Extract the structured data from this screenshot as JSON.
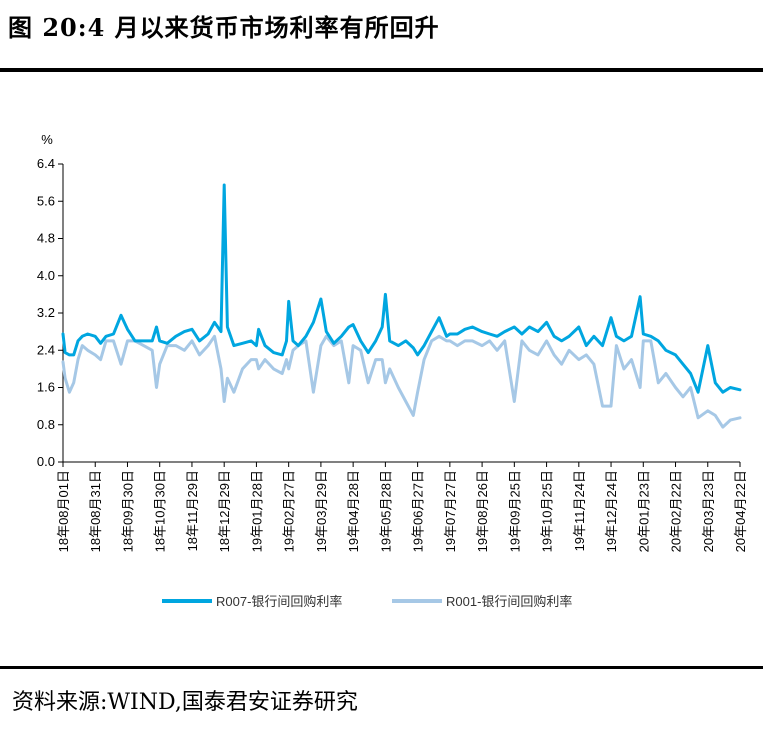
{
  "figure": {
    "title": "图 20:4 月以来货币市场利率有所回升",
    "source": "资料来源:WIND,国泰君安证券研究"
  },
  "chart_data": {
    "type": "line",
    "ylabel": "%",
    "ylim": [
      0.0,
      6.4
    ],
    "yticks": [
      "0.0",
      "0.8",
      "1.6",
      "2.4",
      "3.2",
      "4.0",
      "4.8",
      "5.6",
      "6.4"
    ],
    "xlim": [
      "18年08月01日",
      "20年04月22日"
    ],
    "xticks": [
      "18年08月01日",
      "18年08月31日",
      "18年09月30日",
      "18年10月30日",
      "18年11月29日",
      "18年12月29日",
      "19年01月28日",
      "19年02月27日",
      "19年03月29日",
      "19年04月28日",
      "19年05月28日",
      "19年06月27日",
      "19年07月27日",
      "19年08月26日",
      "19年09月25日",
      "19年10月25日",
      "19年11月24日",
      "19年12月24日",
      "20年01月23日",
      "20年02月22日",
      "20年03月23日",
      "20年04月22日"
    ],
    "legend_position": "bottom",
    "grid": false,
    "series": [
      {
        "name": "R007-银行间回购利率",
        "color": "#00a6e0",
        "points": [
          [
            "18年08月01日",
            2.75
          ],
          [
            "18年08月03日",
            2.35
          ],
          [
            "18年08月07日",
            2.3
          ],
          [
            "18年08月11日",
            2.3
          ],
          [
            "18年08月15日",
            2.6
          ],
          [
            "18年08月19日",
            2.7
          ],
          [
            "18年08月24日",
            2.75
          ],
          [
            "18年08月31日",
            2.7
          ],
          [
            "18年09月05日",
            2.55
          ],
          [
            "18年09月10日",
            2.7
          ],
          [
            "18年09月17日",
            2.75
          ],
          [
            "18年09月24日",
            3.15
          ],
          [
            "18年09月30日",
            2.85
          ],
          [
            "18年10月07日",
            2.6
          ],
          [
            "18年10月15日",
            2.6
          ],
          [
            "18年10月23日",
            2.6
          ],
          [
            "18年10月27日",
            2.9
          ],
          [
            "18年10月30日",
            2.6
          ],
          [
            "18年11月06日",
            2.55
          ],
          [
            "18年11月14日",
            2.7
          ],
          [
            "18年11月22日",
            2.8
          ],
          [
            "18年11月29日",
            2.85
          ],
          [
            "18年12月06日",
            2.6
          ],
          [
            "18年12月14日",
            2.75
          ],
          [
            "18年12月20日",
            3.0
          ],
          [
            "18年12月26日",
            2.8
          ],
          [
            "18年12月29日",
            5.95
          ],
          [
            "19年01月01日",
            2.9
          ],
          [
            "19年01月07日",
            2.5
          ],
          [
            "19年01月15日",
            2.55
          ],
          [
            "19年01月23日",
            2.6
          ],
          [
            "19年01月28日",
            2.5
          ],
          [
            "19年01月30日",
            2.85
          ],
          [
            "19年02月05日",
            2.5
          ],
          [
            "19年02月13日",
            2.35
          ],
          [
            "19年02月21日",
            2.3
          ],
          [
            "19年02月25日",
            2.6
          ],
          [
            "19年02月27日",
            3.45
          ],
          [
            "19年03月03日",
            2.6
          ],
          [
            "19年03月08日",
            2.5
          ],
          [
            "19年03月15日",
            2.7
          ],
          [
            "19年03月22日",
            3.0
          ],
          [
            "19年03月29日",
            3.5
          ],
          [
            "19年04月03日",
            2.8
          ],
          [
            "19年04月10日",
            2.55
          ],
          [
            "19年04月17日",
            2.7
          ],
          [
            "19年04月24日",
            2.9
          ],
          [
            "19年04月28日",
            2.95
          ],
          [
            "19年05月05日",
            2.6
          ],
          [
            "19年05月12日",
            2.35
          ],
          [
            "19年05月19日",
            2.6
          ],
          [
            "19年05月25日",
            2.9
          ],
          [
            "19年05月28日",
            3.6
          ],
          [
            "19年06月01日",
            2.6
          ],
          [
            "19年06月09日",
            2.5
          ],
          [
            "19年06月16日",
            2.6
          ],
          [
            "19年06月23日",
            2.45
          ],
          [
            "19年06月27日",
            2.3
          ],
          [
            "19年07月03日",
            2.5
          ],
          [
            "19年07月10日",
            2.8
          ],
          [
            "19年07月17日",
            3.1
          ],
          [
            "19年07月24日",
            2.7
          ],
          [
            "19年07月27日",
            2.75
          ],
          [
            "19年08月03日",
            2.75
          ],
          [
            "19年08月10日",
            2.85
          ],
          [
            "19年08月17日",
            2.9
          ],
          [
            "19年08月26日",
            2.8
          ],
          [
            "19年09月02日",
            2.75
          ],
          [
            "19年09月09日",
            2.7
          ],
          [
            "19年09月16日",
            2.8
          ],
          [
            "19年09月25日",
            2.9
          ],
          [
            "19年10月02日",
            2.75
          ],
          [
            "19年10月09日",
            2.9
          ],
          [
            "19年10月17日",
            2.8
          ],
          [
            "19年10月25日",
            3.0
          ],
          [
            "19年11月01日",
            2.7
          ],
          [
            "19年11月08日",
            2.6
          ],
          [
            "19年11月15日",
            2.7
          ],
          [
            "19年11月24日",
            2.9
          ],
          [
            "19年12月01日",
            2.5
          ],
          [
            "19年12月08日",
            2.7
          ],
          [
            "19年12月16日",
            2.5
          ],
          [
            "19年12月24日",
            3.1
          ],
          [
            "19年12月29日",
            2.7
          ],
          [
            "20年01月05日",
            2.6
          ],
          [
            "20年01月12日",
            2.7
          ],
          [
            "20年01月20日",
            3.55
          ],
          [
            "20年01月23日",
            2.75
          ],
          [
            "20年01月30日",
            2.7
          ],
          [
            "20年02月06日",
            2.6
          ],
          [
            "20年02月13日",
            2.4
          ],
          [
            "20年02月22日",
            2.3
          ],
          [
            "20年02月29日",
            2.1
          ],
          [
            "20年03月07日",
            1.9
          ],
          [
            "20年03月14日",
            1.5
          ],
          [
            "20年03月23日",
            2.5
          ],
          [
            "20年03月30日",
            1.7
          ],
          [
            "20年04月06日",
            1.5
          ],
          [
            "20年04月13日",
            1.6
          ],
          [
            "20年04月22日",
            1.55
          ]
        ]
      },
      {
        "name": "R001-银行间回购利率",
        "color": "#a6c8e6",
        "points": [
          [
            "18年08月01日",
            2.15
          ],
          [
            "18年08月03日",
            1.8
          ],
          [
            "18年08月07日",
            1.5
          ],
          [
            "18年08月11日",
            1.7
          ],
          [
            "18年08月15日",
            2.2
          ],
          [
            "18年08月19日",
            2.5
          ],
          [
            "18年08月24日",
            2.4
          ],
          [
            "18年08月31日",
            2.3
          ],
          [
            "18年09月05日",
            2.2
          ],
          [
            "18年09月10日",
            2.6
          ],
          [
            "18年09月17日",
            2.6
          ],
          [
            "18年09月24日",
            2.1
          ],
          [
            "18年09月30日",
            2.6
          ],
          [
            "18年10月07日",
            2.6
          ],
          [
            "18年10月15日",
            2.5
          ],
          [
            "18年10月23日",
            2.4
          ],
          [
            "18年10月27日",
            1.6
          ],
          [
            "18年10月30日",
            2.1
          ],
          [
            "18年11月06日",
            2.5
          ],
          [
            "18年11月14日",
            2.5
          ],
          [
            "18年11月22日",
            2.4
          ],
          [
            "18年11月29日",
            2.6
          ],
          [
            "18年12月06日",
            2.3
          ],
          [
            "18年12月14日",
            2.5
          ],
          [
            "18年12月20日",
            2.7
          ],
          [
            "18年12月26日",
            2.0
          ],
          [
            "18年12月29日",
            1.3
          ],
          [
            "19年01月01日",
            1.8
          ],
          [
            "19年01月07日",
            1.5
          ],
          [
            "19年01月15日",
            2.0
          ],
          [
            "19年01月23日",
            2.2
          ],
          [
            "19年01月28日",
            2.2
          ],
          [
            "19年01月30日",
            2.0
          ],
          [
            "19年02月05日",
            2.2
          ],
          [
            "19年02月13日",
            2.0
          ],
          [
            "19年02月21日",
            1.9
          ],
          [
            "19年02月25日",
            2.2
          ],
          [
            "19年02月27日",
            2.0
          ],
          [
            "19年03月03日",
            2.4
          ],
          [
            "19年03月08日",
            2.5
          ],
          [
            "19年03月15日",
            2.6
          ],
          [
            "19年03月22日",
            1.5
          ],
          [
            "19年03月29日",
            2.5
          ],
          [
            "19年04月03日",
            2.7
          ],
          [
            "19年04月10日",
            2.5
          ],
          [
            "19年04月17日",
            2.6
          ],
          [
            "19年04月24日",
            1.7
          ],
          [
            "19年04月28日",
            2.5
          ],
          [
            "19年05月05日",
            2.4
          ],
          [
            "19年05月12日",
            1.7
          ],
          [
            "19年05月19日",
            2.2
          ],
          [
            "19年05月25日",
            2.2
          ],
          [
            "19年05月28日",
            1.7
          ],
          [
            "19年06月01日",
            2.0
          ],
          [
            "19年06月09日",
            1.6
          ],
          [
            "19年06月16日",
            1.3
          ],
          [
            "19年06月23日",
            1.0
          ],
          [
            "19年06月27日",
            1.5
          ],
          [
            "19年07月03日",
            2.2
          ],
          [
            "19年07月10日",
            2.6
          ],
          [
            "19年07月17日",
            2.7
          ],
          [
            "19年07月24日",
            2.6
          ],
          [
            "19年07月27日",
            2.6
          ],
          [
            "19年08月03日",
            2.5
          ],
          [
            "19年08月10日",
            2.6
          ],
          [
            "19年08月17日",
            2.6
          ],
          [
            "19年08月26日",
            2.5
          ],
          [
            "19年09月02日",
            2.6
          ],
          [
            "19年09月09日",
            2.4
          ],
          [
            "19年09月16日",
            2.6
          ],
          [
            "19年09月25日",
            1.3
          ],
          [
            "19年10月02日",
            2.6
          ],
          [
            "19年10月09日",
            2.4
          ],
          [
            "19年10月17日",
            2.3
          ],
          [
            "19年10月25日",
            2.6
          ],
          [
            "19年11月01日",
            2.3
          ],
          [
            "19年11月08日",
            2.1
          ],
          [
            "19年11月15日",
            2.4
          ],
          [
            "19年11月24日",
            2.2
          ],
          [
            "19年12月01日",
            2.3
          ],
          [
            "19年12月08日",
            2.1
          ],
          [
            "19年12月16日",
            1.2
          ],
          [
            "19年12月24日",
            1.2
          ],
          [
            "19年12月29日",
            2.5
          ],
          [
            "20年01月05日",
            2.0
          ],
          [
            "20年01月12日",
            2.2
          ],
          [
            "20年01月20日",
            1.6
          ],
          [
            "20年01月23日",
            2.6
          ],
          [
            "20年01月30日",
            2.6
          ],
          [
            "20年02月06日",
            1.7
          ],
          [
            "20年02月13日",
            1.9
          ],
          [
            "20年02月22日",
            1.6
          ],
          [
            "20年02月29日",
            1.4
          ],
          [
            "20年03月07日",
            1.6
          ],
          [
            "20年03月14日",
            0.95
          ],
          [
            "20年03月23日",
            1.1
          ],
          [
            "20年03月30日",
            1.0
          ],
          [
            "20年04月06日",
            0.75
          ],
          [
            "20年04月13日",
            0.9
          ],
          [
            "20年04月22日",
            0.95
          ]
        ]
      }
    ]
  }
}
